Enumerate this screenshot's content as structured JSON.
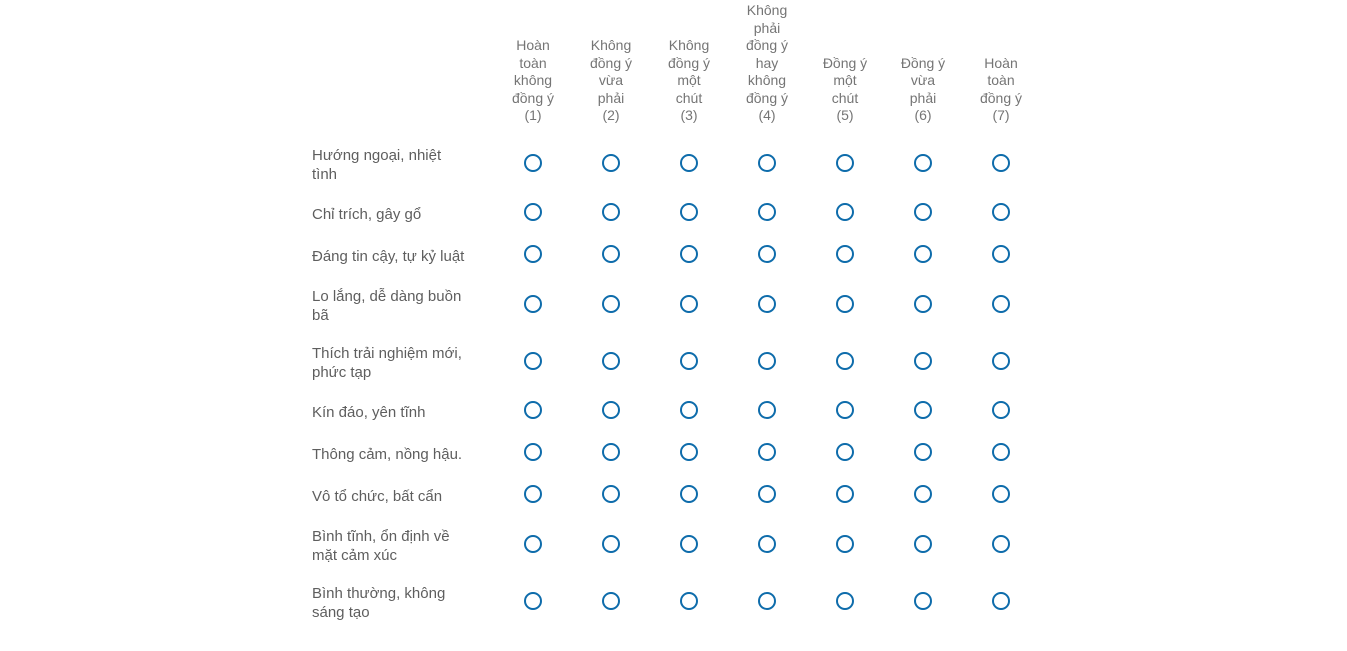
{
  "question": {
    "type": "matrix-likert",
    "language": "Vietnamese",
    "columns_count": 7,
    "rows_count": 10,
    "selected_answers": "none"
  },
  "scale": {
    "options": [
      {
        "value": 1,
        "label": "Hoàn toàn không đồng ý (1)",
        "lines": [
          "Hoàn",
          "toàn",
          "không",
          "đồng ý",
          "(1)"
        ]
      },
      {
        "value": 2,
        "label": "Không đồng ý vừa phải (2)",
        "lines": [
          "Không",
          "đồng ý",
          "vừa",
          "phải",
          "(2)"
        ]
      },
      {
        "value": 3,
        "label": "Không đồng ý một chút (3)",
        "lines": [
          "Không",
          "đồng ý",
          "một",
          "chút",
          "(3)"
        ]
      },
      {
        "value": 4,
        "label": "Không phải đồng ý hay không đồng ý (4)",
        "lines": [
          "Không",
          "phải",
          "đồng ý",
          "hay",
          "không",
          "đồng ý",
          "(4)"
        ]
      },
      {
        "value": 5,
        "label": "Đồng ý một chút (5)",
        "lines": [
          "Đồng ý",
          "một",
          "chút",
          "(5)"
        ]
      },
      {
        "value": 6,
        "label": "Đồng ý vừa phải (6)",
        "lines": [
          "Đồng ý",
          "vừa",
          "phải",
          "(6)"
        ]
      },
      {
        "value": 7,
        "label": "Hoàn toàn đồng ý (7)",
        "lines": [
          "Hoàn",
          "toàn",
          "đồng ý",
          "(7)"
        ]
      }
    ]
  },
  "rows": [
    {
      "label": "Hướng ngoại, nhiệt tình",
      "label_lines": [
        "Hướng ngoại, nhiệt",
        "tình"
      ],
      "selected": null
    },
    {
      "label": "Chỉ trích, gây gổ",
      "label_lines": [
        "Chỉ trích, gây gổ"
      ],
      "selected": null
    },
    {
      "label": "Đáng tin cậy, tự kỷ luật",
      "label_lines": [
        "Đáng tin cậy, tự kỷ luật"
      ],
      "selected": null
    },
    {
      "label": "Lo lắng, dễ dàng buồn bã",
      "label_lines": [
        "Lo lắng, dễ dàng buồn",
        "bã"
      ],
      "selected": null
    },
    {
      "label": "Thích trải nghiệm mới, phức tạp",
      "label_lines": [
        "Thích trải nghiệm mới,",
        "phức tạp"
      ],
      "selected": null
    },
    {
      "label": "Kín đáo, yên tĩnh",
      "label_lines": [
        "Kín đáo, yên tĩnh"
      ],
      "selected": null
    },
    {
      "label": "Thông cảm, nồng hậu.",
      "label_lines": [
        "Thông cảm, nồng hậu."
      ],
      "selected": null
    },
    {
      "label": "Vô tổ chức, bất cẩn",
      "label_lines": [
        "Vô tổ chức, bất cẩn"
      ],
      "selected": null
    },
    {
      "label": "Bình tĩnh, ổn định về mặt cảm xúc",
      "label_lines": [
        "Bình tĩnh, ổn định về",
        "mặt cảm xúc"
      ],
      "selected": null
    },
    {
      "label": "Bình thường, không sáng tạo",
      "label_lines": [
        "Bình thường, không",
        "sáng tạo"
      ],
      "selected": null
    }
  ],
  "colors": {
    "radio_border": "#0e6cab",
    "header_text": "#757575",
    "row_text": "#5e5e5e",
    "background": "#ffffff"
  }
}
